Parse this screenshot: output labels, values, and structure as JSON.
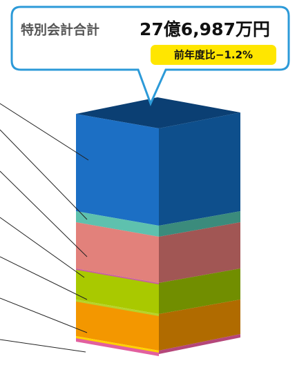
{
  "callout": {
    "label": "特別会計合計",
    "total": "27億6,987万円",
    "change": "前年度比−1.2%"
  }
}
